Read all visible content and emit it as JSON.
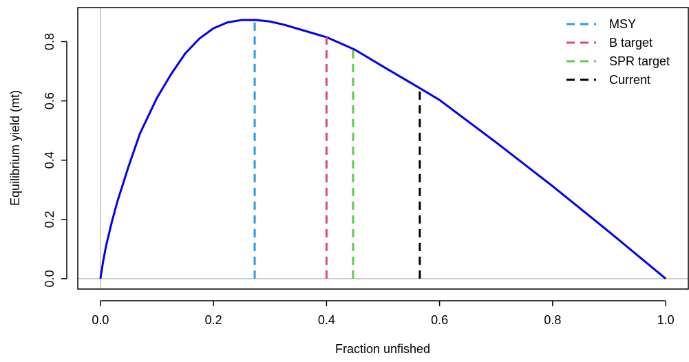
{
  "chart_data": {
    "type": "line",
    "xlabel": "Fraction unfished",
    "ylabel": "Equilibrium yield (mt)",
    "xlim": [
      -0.04,
      1.04
    ],
    "ylim": [
      -0.035,
      0.915
    ],
    "x_ticks": [
      0.0,
      0.2,
      0.4,
      0.6,
      0.8,
      1.0
    ],
    "x_tick_labels": [
      "0.0",
      "0.2",
      "0.4",
      "0.6",
      "0.8",
      "1.0"
    ],
    "y_ticks": [
      0.0,
      0.2,
      0.4,
      0.6,
      0.8
    ],
    "y_tick_labels": [
      "0.0",
      "0.2",
      "0.4",
      "0.6",
      "0.8"
    ],
    "grid": false,
    "reference_lines": {
      "x": 0,
      "y": 0,
      "color": "#bebebe"
    },
    "curve": {
      "color": "#0000ee",
      "x": [
        0.0,
        0.005,
        0.01,
        0.02,
        0.03,
        0.05,
        0.07,
        0.1,
        0.125,
        0.15,
        0.175,
        0.2,
        0.225,
        0.25,
        0.275,
        0.3,
        0.325,
        0.35,
        0.4,
        0.45,
        0.5,
        0.565,
        0.6,
        0.7,
        0.8,
        0.9,
        1.0
      ],
      "y": [
        0.0,
        0.06,
        0.11,
        0.19,
        0.26,
        0.38,
        0.49,
        0.61,
        0.69,
        0.76,
        0.81,
        0.845,
        0.865,
        0.873,
        0.873,
        0.868,
        0.857,
        0.843,
        0.815,
        0.773,
        0.716,
        0.643,
        0.603,
        0.46,
        0.312,
        0.158,
        0.0
      ]
    },
    "series": [
      {
        "name": "MSY",
        "x": 0.273,
        "y": 0.873,
        "color": "#2d9ae0"
      },
      {
        "name": "B target",
        "x": 0.4,
        "y": 0.815,
        "color": "#de4a68"
      },
      {
        "name": "SPR target",
        "x": 0.447,
        "y": 0.773,
        "color": "#5ccc4a"
      },
      {
        "name": "Current",
        "x": 0.565,
        "y": 0.643,
        "color": "#000000"
      }
    ],
    "legend_position": "top-right"
  }
}
